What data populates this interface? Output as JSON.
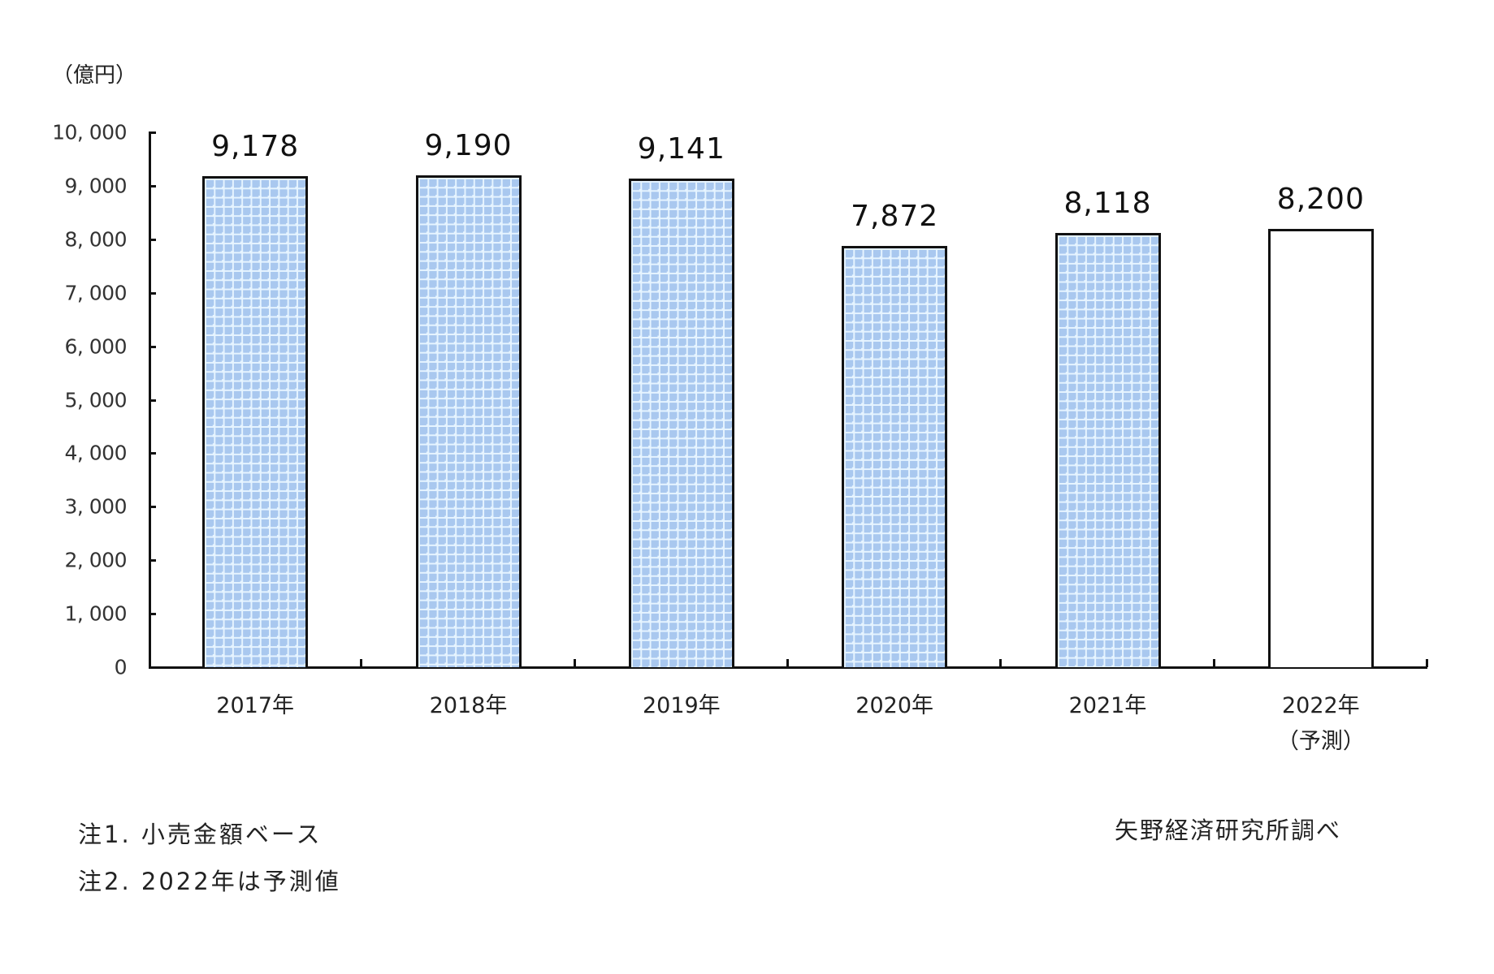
{
  "chart_data": {
    "type": "bar",
    "title": "",
    "ylabel": "（億円）",
    "xlabel": "",
    "categories": [
      "2017年",
      "2018年",
      "2019年",
      "2020年",
      "2021年",
      "2022年（予測）"
    ],
    "category_lines": [
      [
        "2017年"
      ],
      [
        "2018年"
      ],
      [
        "2019年"
      ],
      [
        "2020年"
      ],
      [
        "2021年"
      ],
      [
        "2022年",
        "（予測）"
      ]
    ],
    "values": [
      9178,
      9190,
      9141,
      7872,
      8118,
      8200
    ],
    "value_labels": [
      "9,178",
      "9,190",
      "9,141",
      "7,872",
      "8,118",
      "8,200"
    ],
    "forecast": [
      false,
      false,
      false,
      false,
      false,
      true
    ],
    "ylim": [
      0,
      10000
    ],
    "yticks": [
      0,
      1000,
      2000,
      3000,
      4000,
      5000,
      6000,
      7000,
      8000,
      9000,
      10000
    ],
    "ytick_labels": [
      "0",
      "1, 000",
      "2, 000",
      "3, 000",
      "4, 000",
      "5, 000",
      "6, 000",
      "7, 000",
      "8, 000",
      "9, 000",
      "10, 000"
    ],
    "grid": false,
    "legend": null,
    "colors": {
      "hatch_fill": "#a9c8ef",
      "hatch_gap": "#e6f4ff",
      "forecast_fill": "#ffffff",
      "outline": "#111111"
    }
  },
  "notes": [
    "注1. 小売金額ベース",
    "注2. 2022年は予測値"
  ],
  "source": "矢野経済研究所調べ"
}
